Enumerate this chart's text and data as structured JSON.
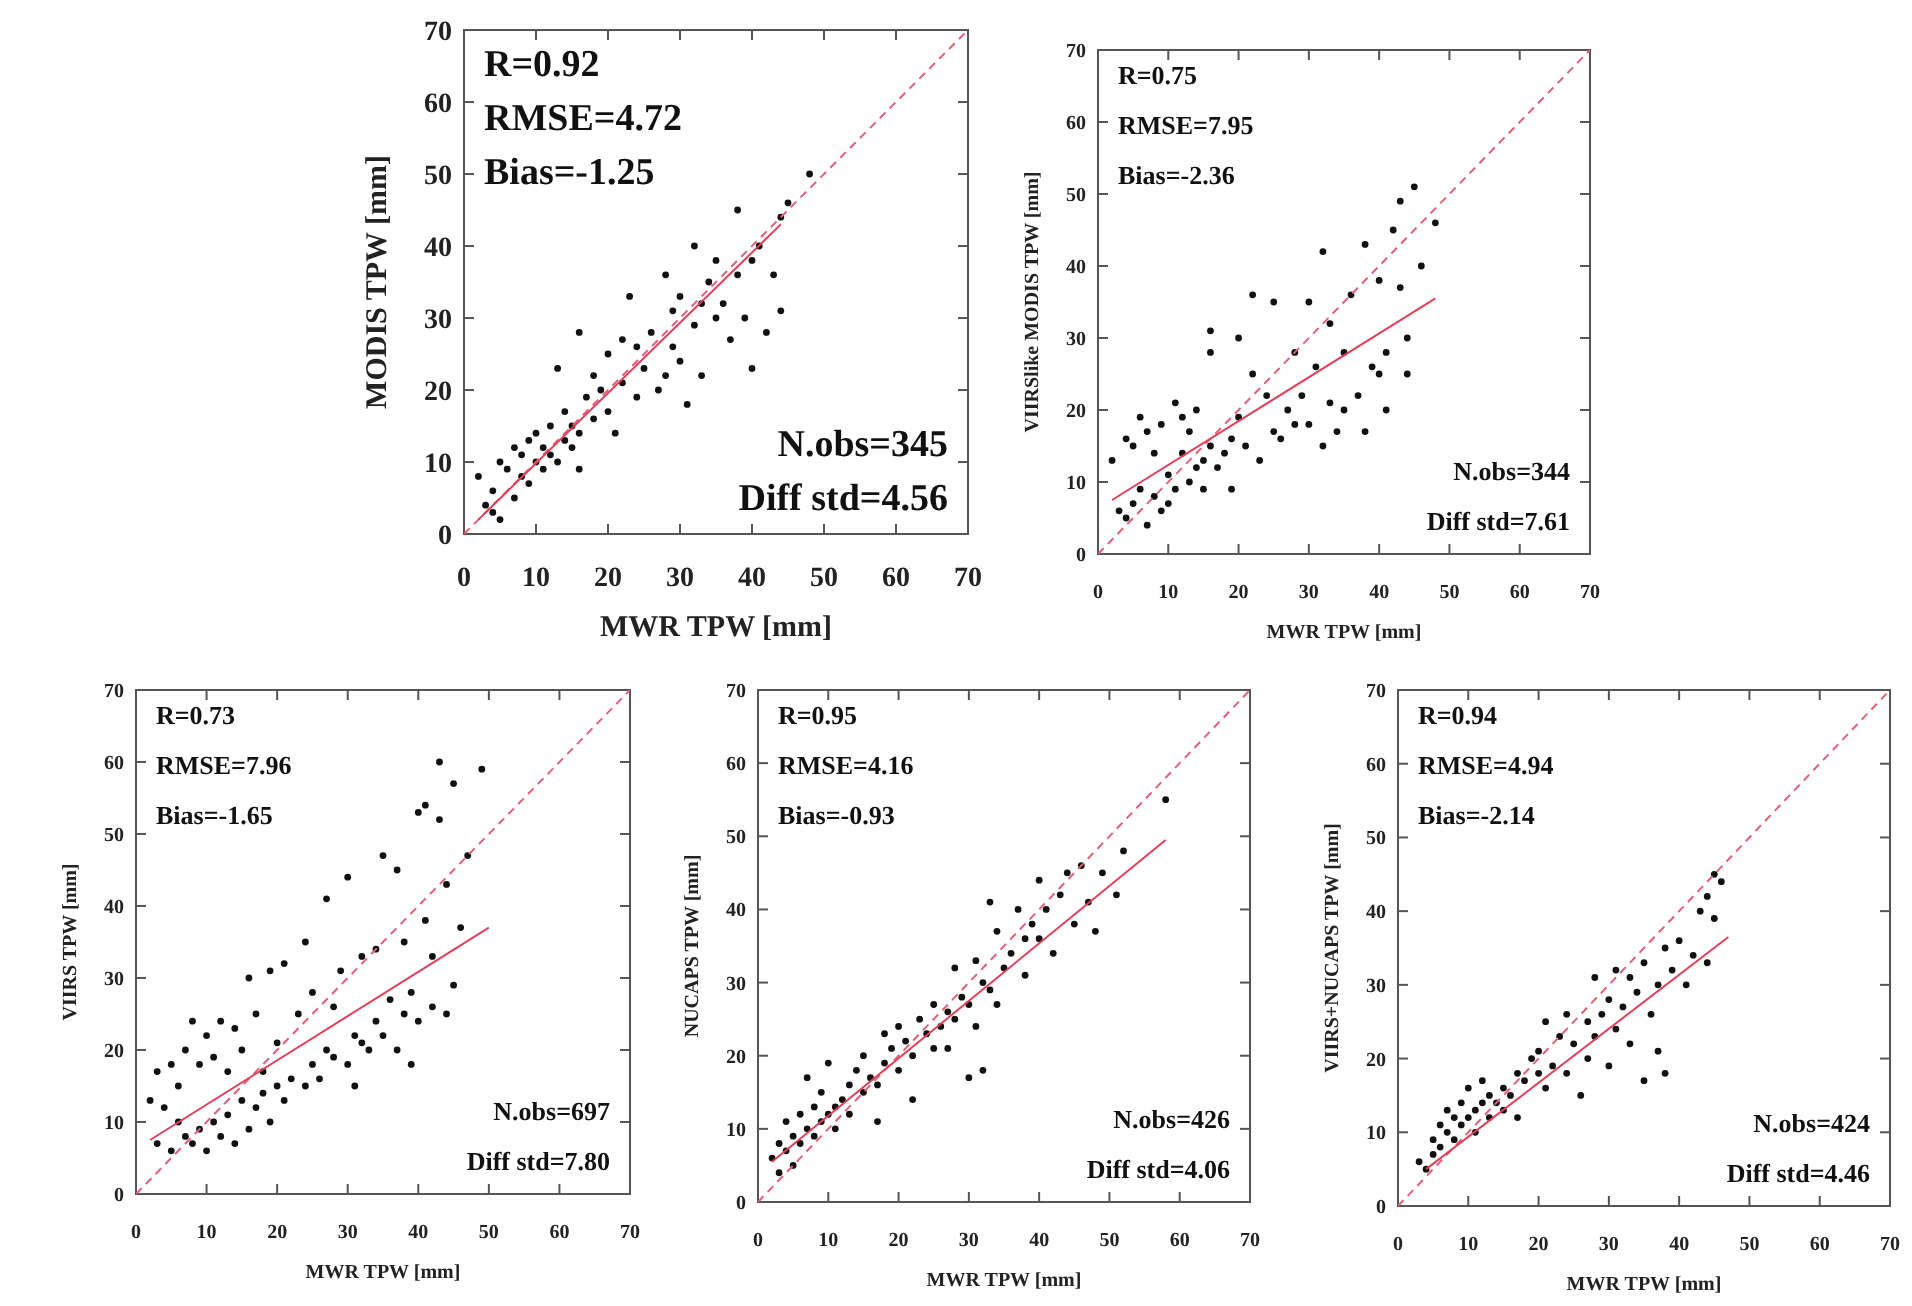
{
  "chart_data": [
    {
      "type": "scatter",
      "xlabel": "MWR TPW [mm]",
      "ylabel": "MODIS TPW [mm]",
      "xlim": [
        0,
        70
      ],
      "ylim": [
        0,
        70
      ],
      "xticks": [
        0,
        10,
        20,
        30,
        40,
        50,
        60,
        70
      ],
      "yticks": [
        0,
        10,
        20,
        30,
        40,
        50,
        60,
        70
      ],
      "annotations": [
        "R=0.92",
        "RMSE=4.72",
        "Bias=-1.25",
        "N.obs=345",
        "Diff std=4.56"
      ],
      "series": [
        {
          "type": "scatter",
          "marker": "circle",
          "color": "#111111",
          "x": [
            2,
            3,
            4,
            4,
            5,
            5,
            6,
            7,
            7,
            8,
            8,
            9,
            9,
            10,
            10,
            11,
            11,
            12,
            12,
            13,
            13,
            14,
            14,
            15,
            15,
            16,
            16,
            16,
            17,
            18,
            18,
            19,
            20,
            20,
            21,
            22,
            22,
            23,
            24,
            24,
            25,
            26,
            27,
            28,
            28,
            29,
            29,
            30,
            30,
            31,
            32,
            32,
            33,
            33,
            34,
            35,
            35,
            36,
            37,
            38,
            38,
            39,
            40,
            40,
            41,
            42,
            43,
            44,
            44,
            45,
            48
          ],
          "values": [
            8,
            4,
            3,
            6,
            2,
            10,
            9,
            5,
            12,
            8,
            11,
            7,
            13,
            10,
            14,
            9,
            12,
            11,
            15,
            10,
            23,
            13,
            17,
            12,
            15,
            9,
            14,
            28,
            19,
            16,
            22,
            20,
            17,
            25,
            14,
            21,
            27,
            33,
            19,
            26,
            23,
            28,
            20,
            22,
            36,
            26,
            31,
            24,
            33,
            18,
            29,
            40,
            32,
            22,
            35,
            30,
            38,
            32,
            27,
            36,
            45,
            30,
            38,
            23,
            40,
            28,
            36,
            44,
            31,
            46,
            50
          ]
        },
        {
          "type": "line",
          "line_style": "dashed",
          "color": "#e0607a",
          "x": [
            0,
            70
          ],
          "values": [
            0,
            70
          ]
        },
        {
          "type": "line",
          "line_style": "solid",
          "color": "#e0405a",
          "x": [
            2,
            44
          ],
          "values": [
            2,
            43
          ]
        }
      ]
    },
    {
      "type": "scatter",
      "xlabel": "MWR TPW [mm]",
      "ylabel": "VIIRSlike MODIS TPW [mm]",
      "xlim": [
        0,
        70
      ],
      "ylim": [
        0,
        70
      ],
      "xticks": [
        0,
        10,
        20,
        30,
        40,
        50,
        60,
        70
      ],
      "yticks": [
        0,
        10,
        20,
        30,
        40,
        50,
        60,
        70
      ],
      "annotations": [
        "R=0.75",
        "RMSE=7.95",
        "Bias=-2.36",
        "N.obs=344",
        "Diff std=7.61"
      ],
      "series": [
        {
          "type": "scatter",
          "marker": "circle",
          "color": "#111111",
          "x": [
            2,
            3,
            4,
            4,
            5,
            5,
            6,
            6,
            7,
            7,
            8,
            8,
            9,
            9,
            10,
            10,
            11,
            11,
            12,
            12,
            13,
            13,
            14,
            14,
            15,
            15,
            16,
            16,
            16,
            17,
            18,
            19,
            19,
            20,
            20,
            21,
            22,
            22,
            23,
            24,
            25,
            25,
            26,
            27,
            28,
            28,
            29,
            30,
            30,
            31,
            32,
            32,
            33,
            33,
            34,
            35,
            35,
            36,
            37,
            38,
            38,
            39,
            40,
            40,
            41,
            41,
            42,
            43,
            43,
            44,
            44,
            45,
            46,
            48
          ],
          "values": [
            13,
            6,
            5,
            16,
            7,
            15,
            19,
            9,
            4,
            17,
            8,
            14,
            6,
            18,
            7,
            11,
            21,
            9,
            14,
            19,
            10,
            17,
            12,
            20,
            13,
            9,
            31,
            15,
            28,
            12,
            14,
            9,
            16,
            30,
            19,
            15,
            25,
            36,
            13,
            22,
            35,
            17,
            16,
            20,
            28,
            18,
            22,
            18,
            35,
            26,
            42,
            15,
            32,
            21,
            17,
            28,
            20,
            36,
            22,
            43,
            17,
            26,
            38,
            25,
            20,
            28,
            45,
            49,
            37,
            30,
            25,
            51,
            40,
            46
          ]
        },
        {
          "type": "line",
          "line_style": "dashed",
          "color": "#e0607a",
          "x": [
            0,
            70
          ],
          "values": [
            0,
            70
          ]
        },
        {
          "type": "line",
          "line_style": "solid",
          "color": "#e0405a",
          "x": [
            2,
            48
          ],
          "values": [
            7.5,
            35.5
          ]
        }
      ]
    },
    {
      "type": "scatter",
      "xlabel": "MWR TPW [mm]",
      "ylabel": "VIIRS TPW [mm]",
      "xlim": [
        0,
        70
      ],
      "ylim": [
        0,
        70
      ],
      "xticks": [
        0,
        10,
        20,
        30,
        40,
        50,
        60,
        70
      ],
      "yticks": [
        0,
        10,
        20,
        30,
        40,
        50,
        60,
        70
      ],
      "annotations": [
        "R=0.73",
        "RMSE=7.96",
        "Bias=-1.65",
        "N.obs=697",
        "Diff std=7.80"
      ],
      "series": [
        {
          "type": "scatter",
          "marker": "circle",
          "color": "#111111",
          "x": [
            2,
            3,
            3,
            4,
            5,
            5,
            6,
            6,
            7,
            7,
            8,
            8,
            9,
            9,
            10,
            10,
            11,
            11,
            12,
            12,
            13,
            13,
            14,
            14,
            15,
            15,
            16,
            16,
            17,
            17,
            18,
            18,
            19,
            19,
            20,
            20,
            21,
            21,
            22,
            23,
            24,
            24,
            25,
            25,
            26,
            27,
            27,
            28,
            28,
            29,
            30,
            30,
            31,
            31,
            32,
            32,
            33,
            34,
            34,
            35,
            35,
            36,
            37,
            37,
            38,
            38,
            39,
            39,
            40,
            40,
            41,
            41,
            42,
            42,
            43,
            43,
            44,
            44,
            45,
            45,
            46,
            47,
            49
          ],
          "values": [
            13,
            7,
            17,
            12,
            6,
            18,
            10,
            15,
            8,
            20,
            7,
            24,
            9,
            18,
            6,
            22,
            10,
            19,
            8,
            24,
            11,
            17,
            7,
            23,
            13,
            20,
            9,
            30,
            12,
            25,
            14,
            17,
            31,
            10,
            15,
            21,
            32,
            13,
            16,
            25,
            35,
            15,
            18,
            28,
            16,
            41,
            20,
            19,
            26,
            31,
            18,
            44,
            22,
            15,
            33,
            21,
            20,
            34,
            24,
            47,
            22,
            27,
            45,
            20,
            25,
            35,
            28,
            18,
            53,
            24,
            38,
            54,
            33,
            26,
            60,
            52,
            43,
            25,
            57,
            29,
            37,
            47,
            59
          ]
        },
        {
          "type": "line",
          "line_style": "dashed",
          "color": "#e0607a",
          "x": [
            0,
            70
          ],
          "values": [
            0,
            70
          ]
        },
        {
          "type": "line",
          "line_style": "solid",
          "color": "#e0405a",
          "x": [
            2,
            50
          ],
          "values": [
            7.5,
            37
          ]
        }
      ]
    },
    {
      "type": "scatter",
      "xlabel": "MWR TPW [mm]",
      "ylabel": "NUCAPS TPW [mm]",
      "xlim": [
        0,
        70
      ],
      "ylim": [
        0,
        70
      ],
      "xticks": [
        0,
        10,
        20,
        30,
        40,
        50,
        60,
        70
      ],
      "yticks": [
        0,
        10,
        20,
        30,
        40,
        50,
        60,
        70
      ],
      "annotations": [
        "R=0.95",
        "RMSE=4.16",
        "Bias=-0.93",
        "N.obs=426",
        "Diff std=4.06"
      ],
      "series": [
        {
          "type": "scatter",
          "marker": "circle",
          "color": "#111111",
          "x": [
            2,
            3,
            3,
            4,
            4,
            5,
            5,
            6,
            6,
            7,
            7,
            8,
            8,
            9,
            9,
            10,
            10,
            11,
            11,
            12,
            13,
            13,
            14,
            15,
            15,
            16,
            17,
            17,
            18,
            18,
            19,
            20,
            20,
            21,
            22,
            22,
            23,
            24,
            25,
            25,
            26,
            27,
            27,
            28,
            28,
            29,
            30,
            30,
            31,
            31,
            32,
            32,
            33,
            33,
            34,
            34,
            35,
            36,
            37,
            38,
            38,
            39,
            40,
            40,
            41,
            42,
            43,
            44,
            45,
            46,
            47,
            48,
            49,
            51,
            52,
            58
          ],
          "values": [
            6,
            4,
            8,
            7,
            11,
            5,
            9,
            8,
            12,
            10,
            17,
            9,
            13,
            11,
            15,
            12,
            19,
            13,
            10,
            14,
            16,
            12,
            18,
            15,
            20,
            17,
            16,
            11,
            19,
            23,
            21,
            18,
            24,
            22,
            14,
            20,
            25,
            23,
            27,
            21,
            24,
            26,
            21,
            32,
            25,
            28,
            17,
            27,
            33,
            24,
            30,
            18,
            41,
            29,
            37,
            27,
            32,
            34,
            40,
            36,
            31,
            38,
            44,
            36,
            40,
            34,
            42,
            45,
            38,
            46,
            41,
            37,
            45,
            42,
            48,
            55
          ]
        },
        {
          "type": "line",
          "line_style": "dashed",
          "color": "#e0607a",
          "x": [
            0,
            70
          ],
          "values": [
            0,
            70
          ]
        },
        {
          "type": "line",
          "line_style": "solid",
          "color": "#e0405a",
          "x": [
            2,
            58
          ],
          "values": [
            5.5,
            49.5
          ]
        }
      ]
    },
    {
      "type": "scatter",
      "xlabel": "MWR TPW [mm]",
      "ylabel": "VIIRS+NUCAPS TPW [mm]",
      "xlim": [
        0,
        70
      ],
      "ylim": [
        0,
        70
      ],
      "xticks": [
        0,
        10,
        20,
        30,
        40,
        50,
        60,
        70
      ],
      "yticks": [
        0,
        10,
        20,
        30,
        40,
        50,
        60,
        70
      ],
      "annotations": [
        "R=0.94",
        "RMSE=4.94",
        "Bias=-2.14",
        "N.obs=424",
        "Diff std=4.46"
      ],
      "series": [
        {
          "type": "scatter",
          "marker": "circle",
          "color": "#111111",
          "x": [
            3,
            4,
            5,
            5,
            6,
            6,
            7,
            7,
            8,
            8,
            9,
            9,
            10,
            10,
            11,
            11,
            12,
            12,
            13,
            13,
            14,
            15,
            15,
            16,
            17,
            17,
            18,
            19,
            20,
            20,
            21,
            21,
            22,
            23,
            24,
            24,
            25,
            26,
            27,
            27,
            28,
            28,
            29,
            30,
            30,
            31,
            31,
            32,
            33,
            33,
            34,
            35,
            35,
            36,
            37,
            37,
            38,
            38,
            39,
            40,
            41,
            42,
            43,
            44,
            44,
            45,
            45,
            46
          ],
          "values": [
            6,
            5,
            7,
            9,
            8,
            11,
            10,
            13,
            9,
            12,
            11,
            14,
            12,
            16,
            10,
            13,
            14,
            17,
            12,
            15,
            14,
            16,
            13,
            15,
            18,
            12,
            17,
            20,
            18,
            21,
            16,
            25,
            19,
            23,
            18,
            26,
            22,
            15,
            25,
            20,
            31,
            23,
            26,
            28,
            19,
            32,
            24,
            27,
            31,
            22,
            29,
            17,
            33,
            26,
            30,
            21,
            35,
            18,
            32,
            36,
            30,
            34,
            40,
            33,
            42,
            39,
            45,
            44
          ]
        },
        {
          "type": "line",
          "line_style": "dashed",
          "color": "#e0607a",
          "x": [
            0,
            70
          ],
          "values": [
            0,
            70
          ]
        },
        {
          "type": "line",
          "line_style": "solid",
          "color": "#e0405a",
          "x": [
            4,
            47
          ],
          "values": [
            5,
            36.5
          ]
        }
      ]
    }
  ]
}
